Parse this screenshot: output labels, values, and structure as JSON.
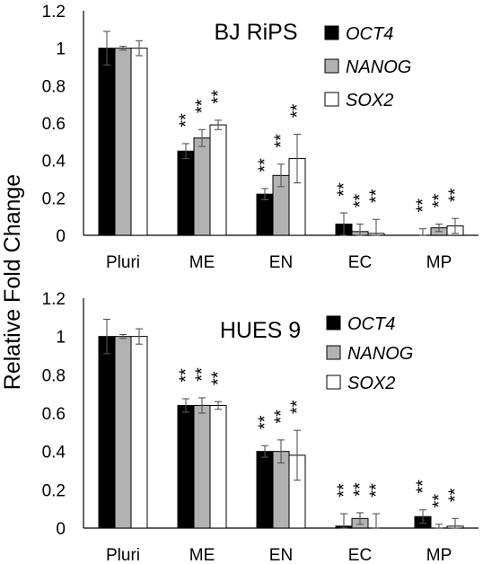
{
  "ylabel": "Relative Fold Change",
  "chart_data": [
    {
      "type": "bar",
      "title": "BJ RiPS",
      "categories": [
        "Pluri",
        "ME",
        "EN",
        "EC",
        "MP"
      ],
      "ylim": [
        0,
        1.2
      ],
      "yticks": [
        "0",
        "0.2",
        "0.4",
        "0.6",
        "0.8",
        "1",
        "1.2"
      ],
      "legend_position": "top-right",
      "series": [
        {
          "name": "OCT4",
          "color": "#000000",
          "values": [
            1.0,
            0.45,
            0.22,
            0.06,
            0.0
          ],
          "errors": [
            0.09,
            0.04,
            0.03,
            0.06,
            0.035
          ]
        },
        {
          "name": "NANOG",
          "color": "#b2b2b2",
          "values": [
            1.0,
            0.52,
            0.32,
            0.02,
            0.04
          ],
          "errors": [
            0.01,
            0.045,
            0.06,
            0.04,
            0.02
          ]
        },
        {
          "name": "SOX2",
          "color": "#ffffff",
          "values": [
            1.0,
            0.59,
            0.41,
            0.01,
            0.05
          ],
          "errors": [
            0.04,
            0.025,
            0.13,
            0.075,
            0.04
          ]
        }
      ],
      "significance": [
        [
          "",
          "**",
          "**",
          "**",
          "**"
        ],
        [
          "",
          "**",
          "**",
          "**",
          "**"
        ],
        [
          "",
          "**",
          "**",
          "**",
          "**"
        ]
      ]
    },
    {
      "type": "bar",
      "title": "HUES 9",
      "categories": [
        "Pluri",
        "ME",
        "EN",
        "EC",
        "MP"
      ],
      "ylim": [
        0,
        1.2
      ],
      "yticks": [
        "0",
        "0.2",
        "0.4",
        "0.6",
        "0.8",
        "1",
        "1.2"
      ],
      "legend_position": "top-right",
      "series": [
        {
          "name": "OCT4",
          "color": "#000000",
          "values": [
            1.0,
            0.64,
            0.4,
            0.01,
            0.06
          ],
          "errors": [
            0.09,
            0.035,
            0.03,
            0.065,
            0.035
          ]
        },
        {
          "name": "NANOG",
          "color": "#b2b2b2",
          "values": [
            1.0,
            0.64,
            0.4,
            0.05,
            0.0
          ],
          "errors": [
            0.01,
            0.04,
            0.06,
            0.03,
            0.02
          ]
        },
        {
          "name": "SOX2",
          "color": "#ffffff",
          "values": [
            1.0,
            0.64,
            0.38,
            0.0,
            0.01
          ],
          "errors": [
            0.04,
            0.02,
            0.13,
            0.075,
            0.04
          ]
        }
      ],
      "significance": [
        [
          "",
          "**",
          "**",
          "**",
          "**"
        ],
        [
          "",
          "**",
          "**",
          "**",
          "**"
        ],
        [
          "",
          "**",
          "**",
          "**",
          "**"
        ]
      ]
    }
  ]
}
